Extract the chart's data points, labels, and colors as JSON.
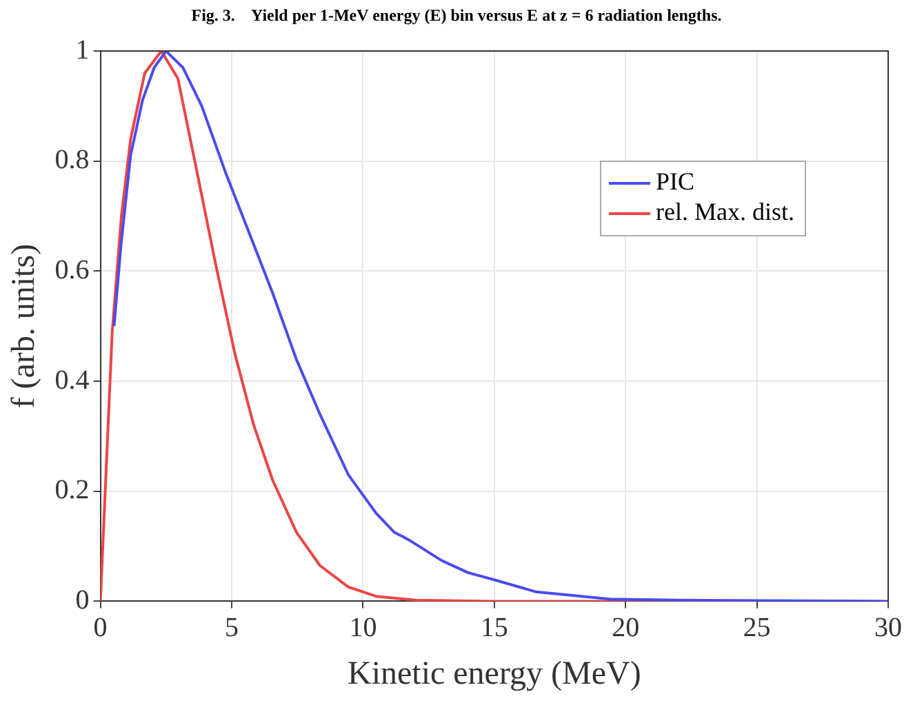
{
  "chart_data": {
    "type": "line",
    "title": "Fig. 3.    Yield per 1-MeV energy (E) bin versus E at z = 6 radiation lengths.",
    "xlabel": "Kinetic energy (MeV)",
    "ylabel": "f (arb. units)",
    "xlim": [
      0,
      30
    ],
    "xticks": [
      0,
      5,
      10,
      15,
      20,
      25,
      30
    ],
    "ylim": [
      0,
      1
    ],
    "yticks": [
      0,
      0.2,
      0.4,
      0.6,
      0.8,
      1
    ],
    "grid": true,
    "legend": "top right",
    "marker": "none",
    "line_style": "solid",
    "series": [
      {
        "name": "PIC",
        "color": "#4b4bef",
        "x": [
          0.52,
          0.79,
          1.15,
          1.6,
          2.05,
          2.5,
          3.14,
          3.86,
          4.76,
          5.66,
          6.56,
          7.46,
          8.36,
          9.44,
          10.5,
          11.2,
          11.5,
          11.8,
          13.0,
          14.0,
          15.0,
          16.6,
          19.4,
          22.0,
          30.0
        ],
        "values": [
          0.5,
          0.65,
          0.81,
          0.91,
          0.97,
          1.0,
          0.97,
          0.9,
          0.78,
          0.67,
          0.56,
          0.44,
          0.34,
          0.23,
          0.16,
          0.125,
          0.118,
          0.11,
          0.074,
          0.052,
          0.039,
          0.017,
          0.004,
          0.002,
          0.0
        ]
      },
      {
        "name": "rel. Max. dist.",
        "color": "#ee4444",
        "x": [
          0,
          0.45,
          0.8,
          1.15,
          1.69,
          2.32,
          2.95,
          3.68,
          4.4,
          5.12,
          5.84,
          6.56,
          7.46,
          8.36,
          9.44,
          10.5,
          12.0,
          15.0,
          25.0
        ],
        "values": [
          0,
          0.49,
          0.7,
          0.84,
          0.96,
          1.0,
          0.95,
          0.78,
          0.61,
          0.45,
          0.32,
          0.22,
          0.126,
          0.065,
          0.026,
          0.009,
          0.002,
          0.0,
          0.0
        ]
      }
    ]
  }
}
